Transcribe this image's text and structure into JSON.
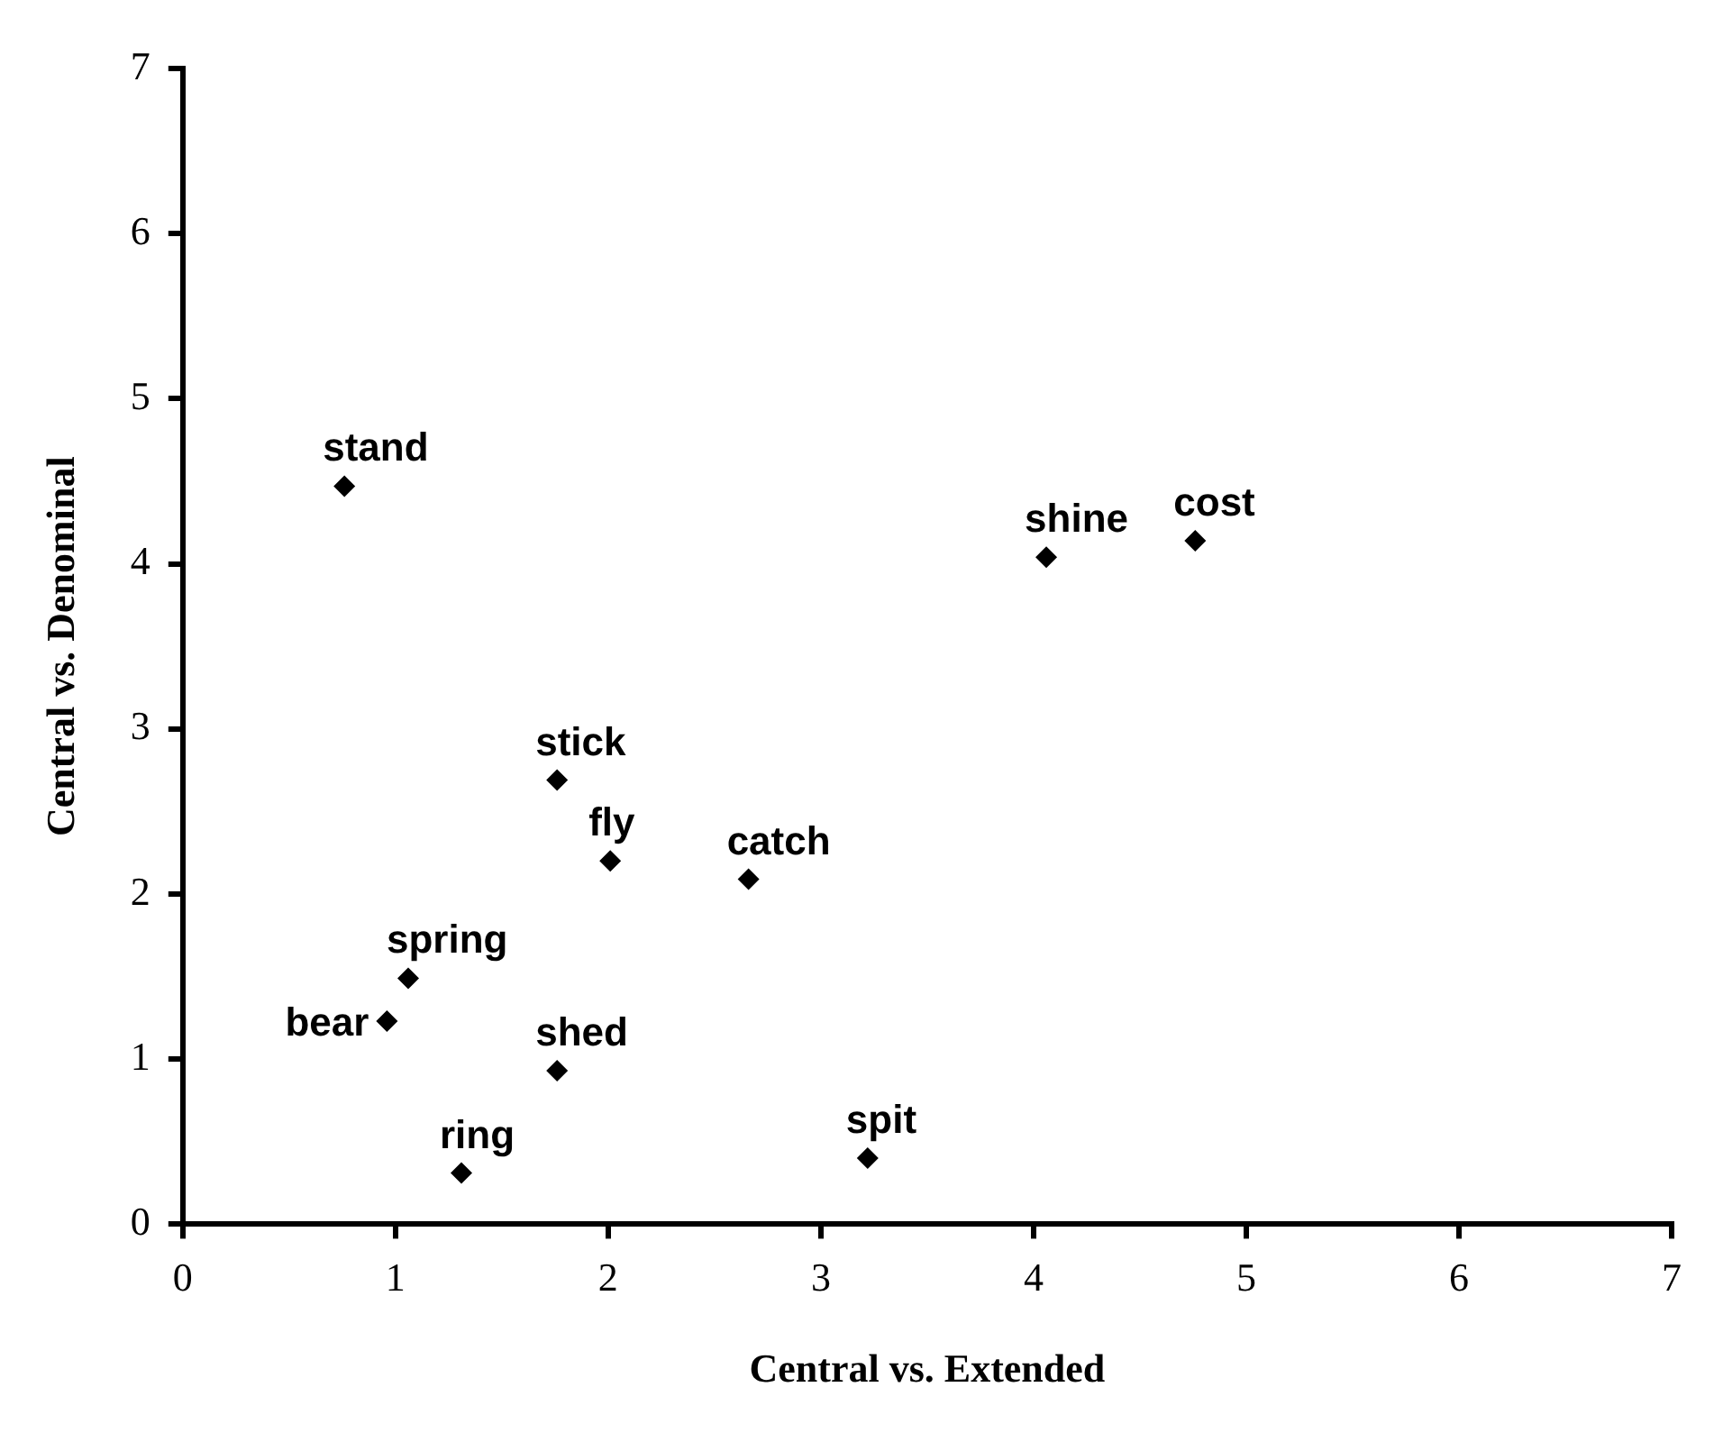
{
  "chart_data": {
    "type": "scatter",
    "xlabel": "Central vs. Extended",
    "ylabel": "Central vs. Denominal",
    "x": [
      0.76,
      4.06,
      4.76,
      1.76,
      2.01,
      2.66,
      1.06,
      0.96,
      1.76,
      1.31,
      3.22
    ],
    "values": [
      4.47,
      4.04,
      4.14,
      2.69,
      2.2,
      2.09,
      1.49,
      1.23,
      0.93,
      0.31,
      0.4
    ],
    "color": "#000000",
    "marker": "diamond",
    "xlim": [
      0,
      7
    ],
    "xticks": [
      0,
      1,
      2,
      3,
      4,
      5,
      6,
      7
    ],
    "ylim": [
      0,
      7
    ],
    "yticks": [
      0,
      1,
      2,
      3,
      4,
      5,
      6,
      7
    ],
    "grid": false,
    "legend": false,
    "annotations": [
      {
        "text": "stand",
        "x": 0.76,
        "y": 4.47
      },
      {
        "text": "shine",
        "x": 4.06,
        "y": 4.04
      },
      {
        "text": "cost",
        "x": 4.76,
        "y": 4.14
      },
      {
        "text": "stick",
        "x": 1.76,
        "y": 2.69
      },
      {
        "text": "fly",
        "x": 2.01,
        "y": 2.2
      },
      {
        "text": "catch",
        "x": 2.66,
        "y": 2.09
      },
      {
        "text": "spring",
        "x": 1.06,
        "y": 1.49
      },
      {
        "text": "bear",
        "x": 0.96,
        "y": 1.23
      },
      {
        "text": "shed",
        "x": 1.76,
        "y": 0.93
      },
      {
        "text": "ring",
        "x": 1.31,
        "y": 0.31
      },
      {
        "text": "spit",
        "x": 3.22,
        "y": 0.4
      }
    ]
  }
}
